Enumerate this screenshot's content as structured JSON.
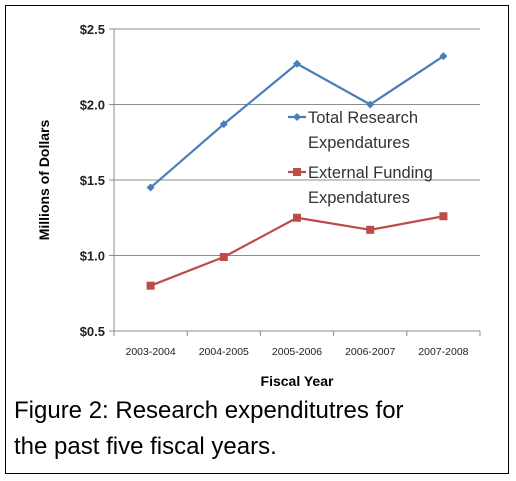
{
  "chart_data": {
    "type": "line",
    "categories": [
      "2003-2004",
      "2004-2005",
      "2005-2006",
      "2006-2007",
      "2007-2008"
    ],
    "series": [
      {
        "name": "Total Research Expendatures",
        "values": [
          1.45,
          1.87,
          2.27,
          2.0,
          2.32
        ],
        "color": "#4a7ebb",
        "marker": "diamond"
      },
      {
        "name": "External Funding Expendatures",
        "values": [
          0.8,
          0.99,
          1.25,
          1.17,
          1.26
        ],
        "color": "#be4b48",
        "marker": "square"
      }
    ],
    "xlabel": "Fiscal Year",
    "ylabel": "Millions of Dollars",
    "ylim": [
      0.5,
      2.5
    ],
    "yticks": [
      0.5,
      1.0,
      1.5,
      2.0,
      2.5
    ],
    "ytick_labels": [
      "$0.5",
      "$1.0",
      "$1.5",
      "$2.0",
      "$2.5"
    ],
    "grid": "horizontal",
    "legend_position": "inside-right",
    "legend_lines": [
      [
        "Total Research",
        "Expendatures"
      ],
      [
        "External Funding",
        "Expendatures"
      ]
    ]
  },
  "caption": {
    "line1": "Figure 2: Research expenditutres for",
    "line2": "the past five fiscal years."
  }
}
